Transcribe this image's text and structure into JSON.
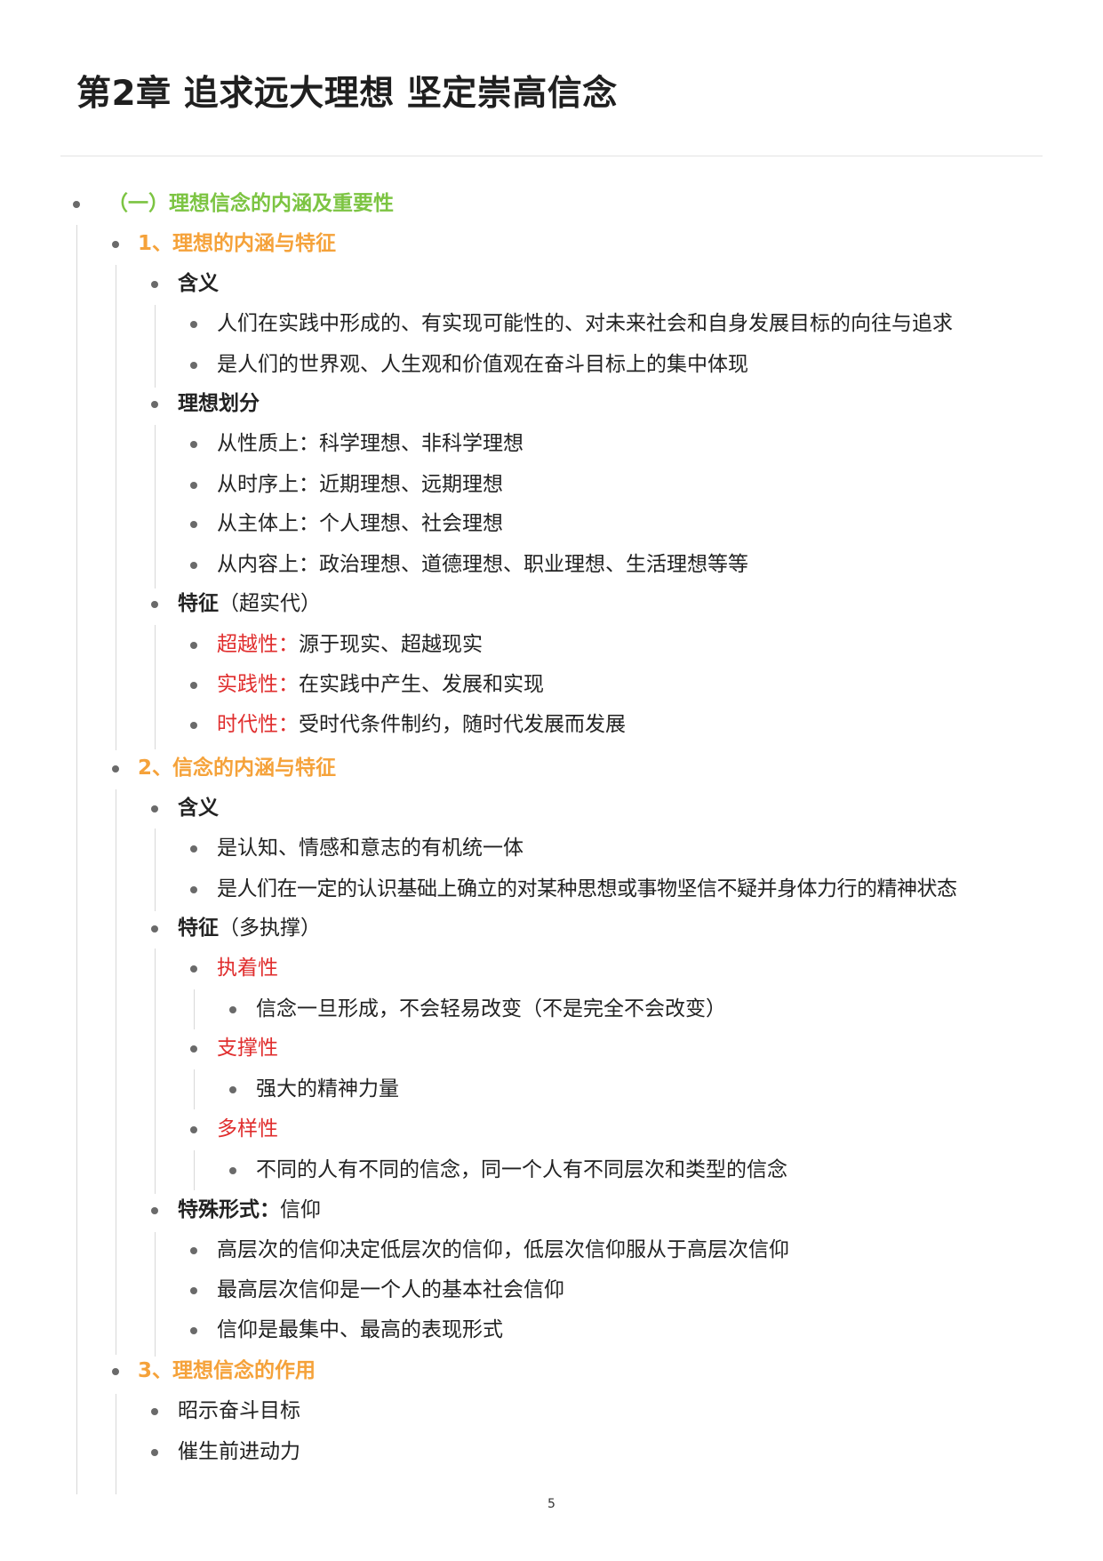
{
  "title": "第2章 追求远大理想 坚定崇高信念",
  "section": "（一）理想信念的内涵及重要性",
  "sub1": {
    "heading": "1、理想的内涵与特征",
    "meaning": {
      "label": "含义",
      "items": [
        "人们在实践中形成的、有实现可能性的、对未来社会和自身发展目标的向往与追求",
        "是人们的世界观、人生观和价值观在奋斗目标上的集中体现"
      ]
    },
    "division": {
      "label": "理想划分",
      "items": [
        "从性质上：科学理想、非科学理想",
        "从时序上：近期理想、远期理想",
        "从主体上：个人理想、社会理想",
        "从内容上：政治理想、道德理想、职业理想、生活理想等等"
      ]
    },
    "features": {
      "label": "特征",
      "note": "（超实代）",
      "items": [
        {
          "term": "超越性：",
          "desc": "源于现实、超越现实"
        },
        {
          "term": "实践性：",
          "desc": "在实践中产生、发展和实现"
        },
        {
          "term": "时代性：",
          "desc": "受时代条件制约，随时代发展而发展"
        }
      ]
    }
  },
  "sub2": {
    "heading": "2、信念的内涵与特征",
    "meaning": {
      "label": "含义",
      "items": [
        "是认知、情感和意志的有机统一体",
        "是人们在一定的认识基础上确立的对某种思想或事物坚信不疑并身体力行的精神状态"
      ]
    },
    "features": {
      "label": "特征",
      "note": "（多执撑）",
      "items": [
        {
          "term": "执着性",
          "desc": "信念一旦形成，不会轻易改变（不是完全不会改变）"
        },
        {
          "term": "支撑性",
          "desc": "强大的精神力量"
        },
        {
          "term": "多样性",
          "desc": "不同的人有不同的信念，同一个人有不同层次和类型的信念"
        }
      ]
    },
    "special": {
      "label": "特殊形式：",
      "value": "信仰",
      "items": [
        "高层次的信仰决定低层次的信仰，低层次信仰服从于高层次信仰",
        "最高层次信仰是一个人的基本社会信仰",
        "信仰是最集中、最高的表现形式"
      ]
    }
  },
  "sub3": {
    "heading": "3、理想信念的作用",
    "items": [
      "昭示奋斗目标",
      "催生前进动力"
    ]
  },
  "page_number": "5"
}
